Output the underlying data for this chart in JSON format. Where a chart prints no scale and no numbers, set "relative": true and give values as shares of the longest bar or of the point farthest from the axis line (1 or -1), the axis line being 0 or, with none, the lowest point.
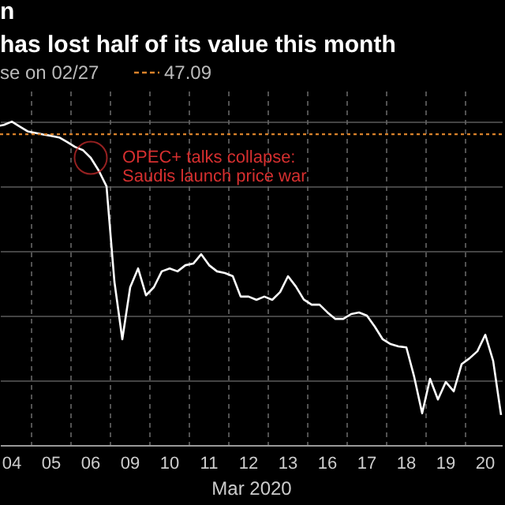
{
  "chart_data": {
    "type": "line",
    "title": "n",
    "subtitle": "has lost half of its value this month",
    "xlabel": "Mar 2020",
    "relative": true,
    "tick_labels": "x",
    "grid": true,
    "legend": "top left",
    "categories": [
      null,
      null,
      "04",
      null,
      null,
      null,
      null,
      "05",
      null,
      null,
      null,
      null,
      "06",
      null,
      null,
      null,
      null,
      "09",
      null,
      null,
      null,
      null,
      "10",
      null,
      null,
      null,
      null,
      "11",
      null,
      null,
      null,
      null,
      "12",
      null,
      null,
      null,
      null,
      "13",
      null,
      null,
      null,
      null,
      "16",
      null,
      null,
      null,
      null,
      "17",
      null,
      null,
      null,
      null,
      "18",
      null,
      null,
      null,
      null,
      "19",
      null,
      null,
      null,
      null,
      "20",
      null,
      null
    ],
    "series": [
      {
        "color": "#ffffff",
        "values": [
          0.985,
          0.99,
          1,
          0.985,
          0.97,
          0.965,
          0.96,
          0.956,
          0.951,
          0.937,
          0.922,
          0.912,
          0.888,
          0.849,
          0.8,
          0.505,
          0.327,
          0.488,
          0.546,
          0.463,
          0.488,
          0.537,
          0.546,
          0.537,
          0.556,
          0.561,
          0.59,
          0.556,
          0.537,
          0.532,
          0.522,
          0.459,
          0.459,
          0.449,
          0.459,
          0.449,
          0.473,
          0.522,
          0.49,
          0.45,
          0.434,
          0.434,
          0.41,
          0.39,
          0.39,
          0.405,
          0.41,
          0.4,
          0.366,
          0.327,
          0.312,
          0.305,
          0.302,
          0.21,
          0.098,
          0.205,
          0.141,
          0.195,
          0.166,
          0.25,
          0.268,
          0.29,
          0.341,
          0.26,
          0.093
        ]
      }
    ],
    "ref_lines": [
      {
        "axis": "y",
        "value": 0.961,
        "label": "se on 02/27",
        "color": "#d9822b",
        "line_style": "dotted"
      }
    ],
    "annotations": [
      "47.09",
      {
        "text": "OPEC+ talks collapse:\nSaudis launch price war",
        "x": "06",
        "y": 0.888
      }
    ]
  }
}
